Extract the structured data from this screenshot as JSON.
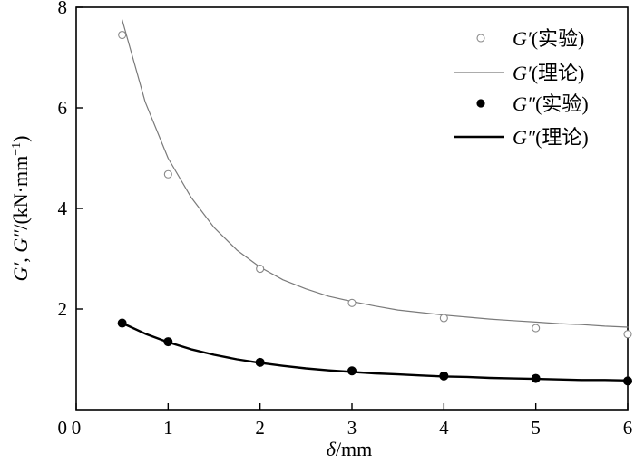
{
  "chart_data": {
    "type": "scatter",
    "xlabel": "δ/mm",
    "xlabel_italic": "δ",
    "xlabel_unit": "/mm",
    "ylabel": "G′, G″/(kN·mm⁻¹)",
    "ylabel_parts": {
      "g1": "G′",
      "sep": ", ",
      "g2": "G″",
      "unit_a": "/(kN·mm",
      "unit_sup": "−1",
      "unit_b": ")"
    },
    "xlim": [
      0,
      6
    ],
    "ylim": [
      0,
      8
    ],
    "xticks": [
      0,
      1,
      2,
      3,
      4,
      5,
      6
    ],
    "yticks": [
      2,
      4,
      6,
      8
    ],
    "xtick_labels": [
      "0",
      "1",
      "2",
      "3",
      "4",
      "5",
      "6"
    ],
    "ytick_labels": [
      "2",
      "4",
      "6",
      "8"
    ],
    "grid": false,
    "legend_position": "top-right",
    "series": [
      {
        "name": "G′(实验)",
        "sym": "G′",
        "tag": "(实验)",
        "kind": "scatter-open",
        "color": "#8a8a8a",
        "x": [
          0.5,
          1,
          2,
          3,
          4,
          5,
          6
        ],
        "y": [
          7.45,
          4.68,
          2.8,
          2.12,
          1.82,
          1.62,
          1.5
        ]
      },
      {
        "name": "G′(理论)",
        "sym": "G′",
        "tag": "(理论)",
        "kind": "line-thin",
        "color": "#7a7a7a",
        "x": [
          0.5,
          0.75,
          1,
          1.25,
          1.5,
          1.75,
          2,
          2.25,
          2.5,
          2.75,
          3,
          3.25,
          3.5,
          3.75,
          4,
          4.25,
          4.5,
          4.75,
          5,
          5.25,
          5.5,
          5.75,
          6
        ],
        "y": [
          7.75,
          6.12,
          5.0,
          4.22,
          3.62,
          3.17,
          2.83,
          2.58,
          2.4,
          2.25,
          2.15,
          2.06,
          1.98,
          1.93,
          1.88,
          1.84,
          1.8,
          1.77,
          1.74,
          1.71,
          1.69,
          1.66,
          1.64
        ]
      },
      {
        "name": "G″(实验)",
        "sym": "G″",
        "tag": "(实验)",
        "kind": "scatter-filled",
        "color": "#000000",
        "x": [
          0.5,
          1,
          2,
          3,
          4,
          5,
          6
        ],
        "y": [
          1.72,
          1.35,
          0.94,
          0.77,
          0.67,
          0.62,
          0.57
        ]
      },
      {
        "name": "G″(理论)",
        "sym": "G″",
        "tag": "(理论)",
        "kind": "line-thick",
        "color": "#000000",
        "x": [
          0.5,
          0.75,
          1,
          1.25,
          1.5,
          1.75,
          2,
          2.25,
          2.5,
          2.75,
          3,
          3.25,
          3.5,
          3.75,
          4,
          4.25,
          4.5,
          4.75,
          5,
          5.25,
          5.5,
          5.75,
          6
        ],
        "y": [
          1.72,
          1.51,
          1.34,
          1.2,
          1.09,
          1.0,
          0.93,
          0.87,
          0.82,
          0.78,
          0.75,
          0.72,
          0.7,
          0.68,
          0.66,
          0.65,
          0.63,
          0.62,
          0.61,
          0.6,
          0.59,
          0.59,
          0.58
        ]
      }
    ]
  }
}
